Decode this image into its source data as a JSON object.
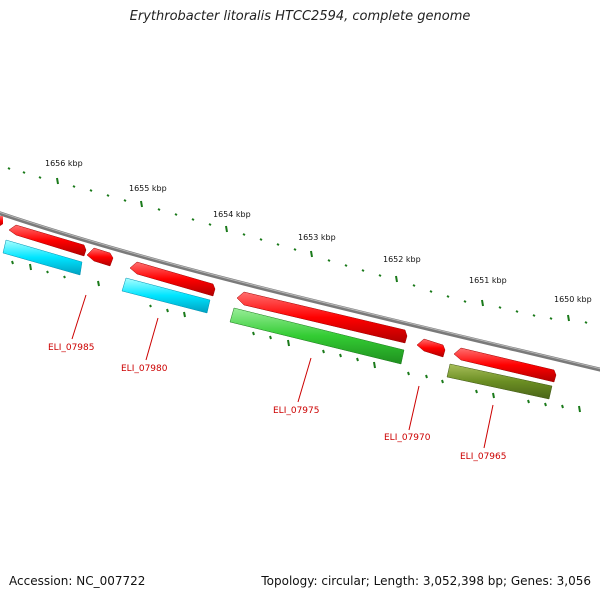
{
  "title": "Erythrobacter litoralis HTCC2594, complete genome",
  "footer": {
    "accession": "Accession: NC_007722",
    "summary": "Topology: circular; Length: 3,052,398 bp; Genes: 3,056"
  },
  "scale": {
    "ticks": [
      "1656 kbp",
      "1655 kbp",
      "1654 kbp",
      "1653 kbp",
      "1652 kbp",
      "1651 kbp",
      "1650 kbp"
    ]
  },
  "features": {
    "labels": [
      "ELI_07985",
      "ELI_07980",
      "ELI_07975",
      "ELI_07970",
      "ELI_07965"
    ]
  },
  "colors": {
    "backbone": "#7a7a7a",
    "gene": "#ff0000",
    "locus_label": "#cc0000",
    "tick": "#1a7a1a",
    "cds_cyan": "#00e5ff",
    "cds_green": "#33cc33",
    "cds_olive": "#6b8e23"
  }
}
